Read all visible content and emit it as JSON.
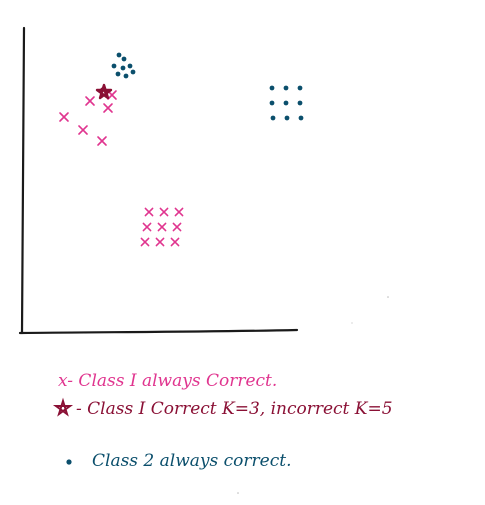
{
  "colors": {
    "class1": "#e0358f",
    "class2": "#0b4f6c",
    "star": "#8a1035",
    "axis": "#1a1a1a"
  },
  "legend": {
    "class1": {
      "marker": "x",
      "text": "x- Class I always Correct."
    },
    "star": {
      "marker": "star",
      "text": "- Class I Correct K=3, incorrect K=5"
    },
    "class2": {
      "marker": "dot",
      "text": "Class 2 always correct."
    }
  }
}
